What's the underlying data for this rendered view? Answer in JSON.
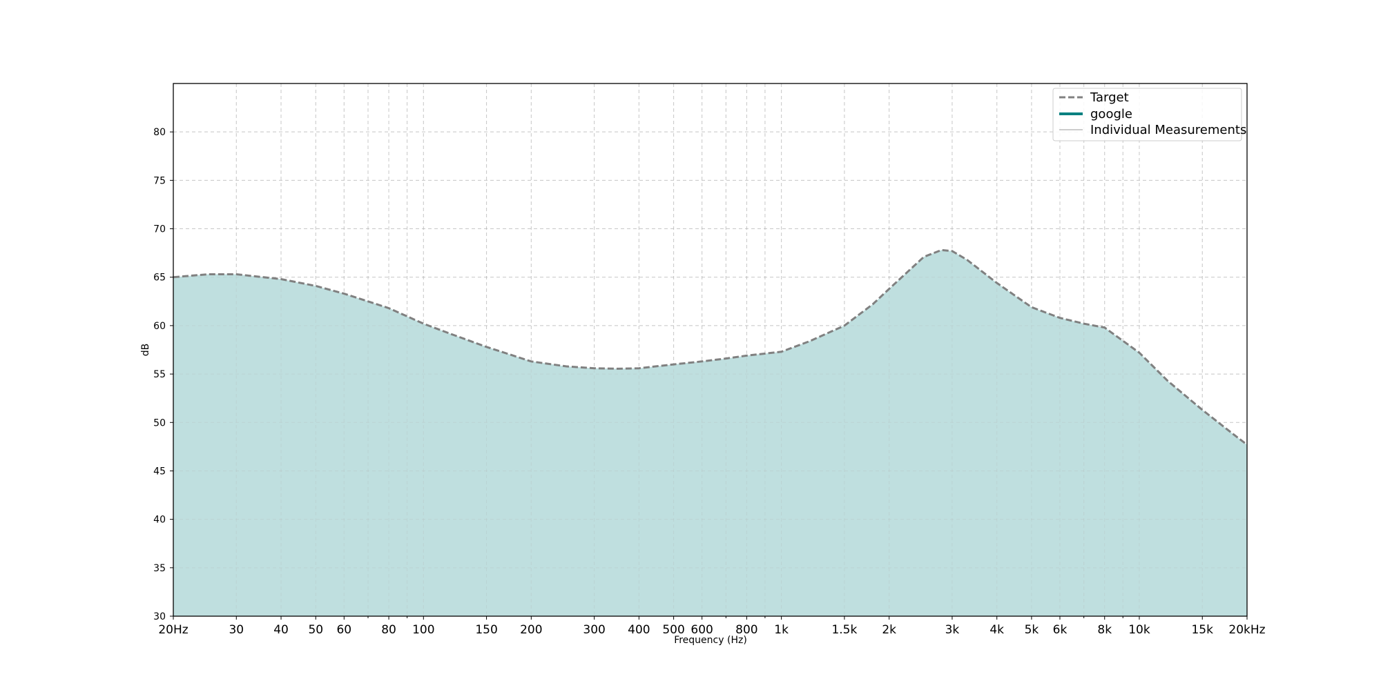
{
  "chart_data": {
    "type": "area",
    "title": "",
    "xlabel": "Frequency (Hz)",
    "ylabel": "dB",
    "xscale": "log",
    "xlim": [
      20,
      20000
    ],
    "ylim": [
      30,
      85
    ],
    "grid": true,
    "legend_position": "top-right",
    "x_ticks": [
      {
        "value": 20,
        "label": "20Hz"
      },
      {
        "value": 30,
        "label": "30"
      },
      {
        "value": 40,
        "label": "40"
      },
      {
        "value": 50,
        "label": "50"
      },
      {
        "value": 60,
        "label": "60"
      },
      {
        "value": 80,
        "label": "80"
      },
      {
        "value": 100,
        "label": "100"
      },
      {
        "value": 150,
        "label": "150"
      },
      {
        "value": 200,
        "label": "200"
      },
      {
        "value": 300,
        "label": "300"
      },
      {
        "value": 400,
        "label": "400"
      },
      {
        "value": 500,
        "label": "500"
      },
      {
        "value": 600,
        "label": "600"
      },
      {
        "value": 800,
        "label": "800"
      },
      {
        "value": 1000,
        "label": "1k"
      },
      {
        "value": 1500,
        "label": "1.5k"
      },
      {
        "value": 2000,
        "label": "2k"
      },
      {
        "value": 3000,
        "label": "3k"
      },
      {
        "value": 4000,
        "label": "4k"
      },
      {
        "value": 5000,
        "label": "5k"
      },
      {
        "value": 6000,
        "label": "6k"
      },
      {
        "value": 8000,
        "label": "8k"
      },
      {
        "value": 10000,
        "label": "10k"
      },
      {
        "value": 15000,
        "label": "15k"
      },
      {
        "value": 20000,
        "label": "20kHz"
      }
    ],
    "x_minor_gridlines": [
      70,
      90,
      700,
      900,
      7000,
      9000
    ],
    "y_ticks": [
      30,
      35,
      40,
      45,
      50,
      55,
      60,
      65,
      70,
      75,
      80
    ],
    "series": [
      {
        "name": "Target",
        "style": "dashed",
        "color": "#808080",
        "x": [
          20,
          25,
          30,
          40,
          50,
          60,
          70,
          80,
          100,
          120,
          150,
          200,
          250,
          300,
          350,
          400,
          500,
          600,
          700,
          800,
          1000,
          1200,
          1500,
          1800,
          2000,
          2200,
          2500,
          2800,
          3000,
          3300,
          4000,
          5000,
          6000,
          7000,
          8000,
          10000,
          12000,
          15000,
          18000,
          20000
        ],
        "y": [
          65.0,
          65.3,
          65.3,
          64.8,
          64.1,
          63.3,
          62.5,
          61.8,
          60.2,
          59.1,
          57.8,
          56.3,
          55.8,
          55.6,
          55.55,
          55.6,
          56.0,
          56.3,
          56.6,
          56.9,
          57.3,
          58.4,
          60.0,
          62.2,
          63.8,
          65.2,
          67.1,
          67.8,
          67.7,
          66.8,
          64.4,
          61.9,
          60.8,
          60.2,
          59.8,
          57.2,
          54.3,
          51.3,
          49.0,
          47.7
        ]
      },
      {
        "name": "google",
        "style": "solid",
        "color": "#008080",
        "x": [],
        "y": []
      },
      {
        "name": "Individual Measurements",
        "style": "thin",
        "color": "#bbbbbb",
        "x": [],
        "y": []
      }
    ],
    "fill_color": "#bfdfdf"
  }
}
